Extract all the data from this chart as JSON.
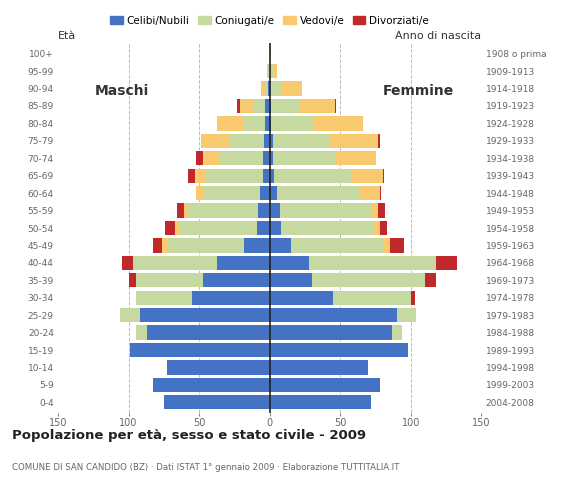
{
  "age_groups_bottom_to_top": [
    "0-4",
    "5-9",
    "10-14",
    "15-19",
    "20-24",
    "25-29",
    "30-34",
    "35-39",
    "40-44",
    "45-49",
    "50-54",
    "55-59",
    "60-64",
    "65-69",
    "70-74",
    "75-79",
    "80-84",
    "85-89",
    "90-94",
    "95-99",
    "100+"
  ],
  "birth_years_bottom_to_top": [
    "2004-2008",
    "1999-2003",
    "1994-1998",
    "1989-1993",
    "1984-1988",
    "1979-1983",
    "1974-1978",
    "1969-1973",
    "1964-1968",
    "1959-1963",
    "1954-1958",
    "1949-1953",
    "1944-1948",
    "1939-1943",
    "1934-1938",
    "1929-1933",
    "1924-1928",
    "1919-1923",
    "1914-1918",
    "1909-1913",
    "1908 o prima"
  ],
  "colors": {
    "celibe": "#4472c4",
    "coniugato": "#c5d9a0",
    "vedovo": "#f8c96e",
    "divorziato": "#c0282a"
  },
  "males_bottom_to_top": {
    "celibe": [
      75,
      83,
      73,
      99,
      87,
      92,
      55,
      47,
      37,
      18,
      9,
      8,
      7,
      5,
      5,
      4,
      3,
      3,
      1,
      0,
      0
    ],
    "coniugato": [
      0,
      0,
      0,
      0,
      8,
      14,
      40,
      48,
      60,
      55,
      55,
      50,
      40,
      40,
      30,
      25,
      16,
      8,
      2,
      1,
      0
    ],
    "vedovo": [
      0,
      0,
      0,
      0,
      0,
      0,
      0,
      0,
      0,
      3,
      3,
      3,
      5,
      8,
      12,
      20,
      18,
      10,
      3,
      1,
      0
    ],
    "divorziato": [
      0,
      0,
      0,
      0,
      0,
      0,
      0,
      5,
      8,
      7,
      7,
      5,
      0,
      5,
      5,
      0,
      0,
      2,
      0,
      0,
      0
    ]
  },
  "females_bottom_to_top": {
    "nubile": [
      72,
      78,
      70,
      98,
      87,
      90,
      45,
      30,
      28,
      15,
      8,
      7,
      5,
      3,
      2,
      2,
      1,
      1,
      0,
      0,
      0
    ],
    "coniugata": [
      0,
      0,
      0,
      0,
      7,
      14,
      55,
      80,
      90,
      65,
      65,
      65,
      58,
      55,
      45,
      40,
      30,
      20,
      8,
      2,
      0
    ],
    "vedova": [
      0,
      0,
      0,
      0,
      0,
      0,
      0,
      0,
      0,
      5,
      5,
      5,
      15,
      22,
      28,
      35,
      35,
      25,
      15,
      3,
      1
    ],
    "divorziata": [
      0,
      0,
      0,
      0,
      0,
      0,
      3,
      8,
      15,
      10,
      5,
      5,
      1,
      1,
      0,
      1,
      0,
      1,
      0,
      0,
      0
    ]
  },
  "xlim": 150,
  "title": "Popolazione per età, sesso e stato civile - 2009",
  "subtitle": "COMUNE DI SAN CANDIDO (BZ) · Dati ISTAT 1° gennaio 2009 · Elaborazione TUTTITALIA.IT",
  "legend_labels": [
    "Celibi/Nubili",
    "Coniugati/e",
    "Vedovi/e",
    "Divorziati/e"
  ],
  "label_maschi": "Maschi",
  "label_femmine": "Femmine",
  "label_eta": "Età",
  "label_anno": "Anno di nascita"
}
